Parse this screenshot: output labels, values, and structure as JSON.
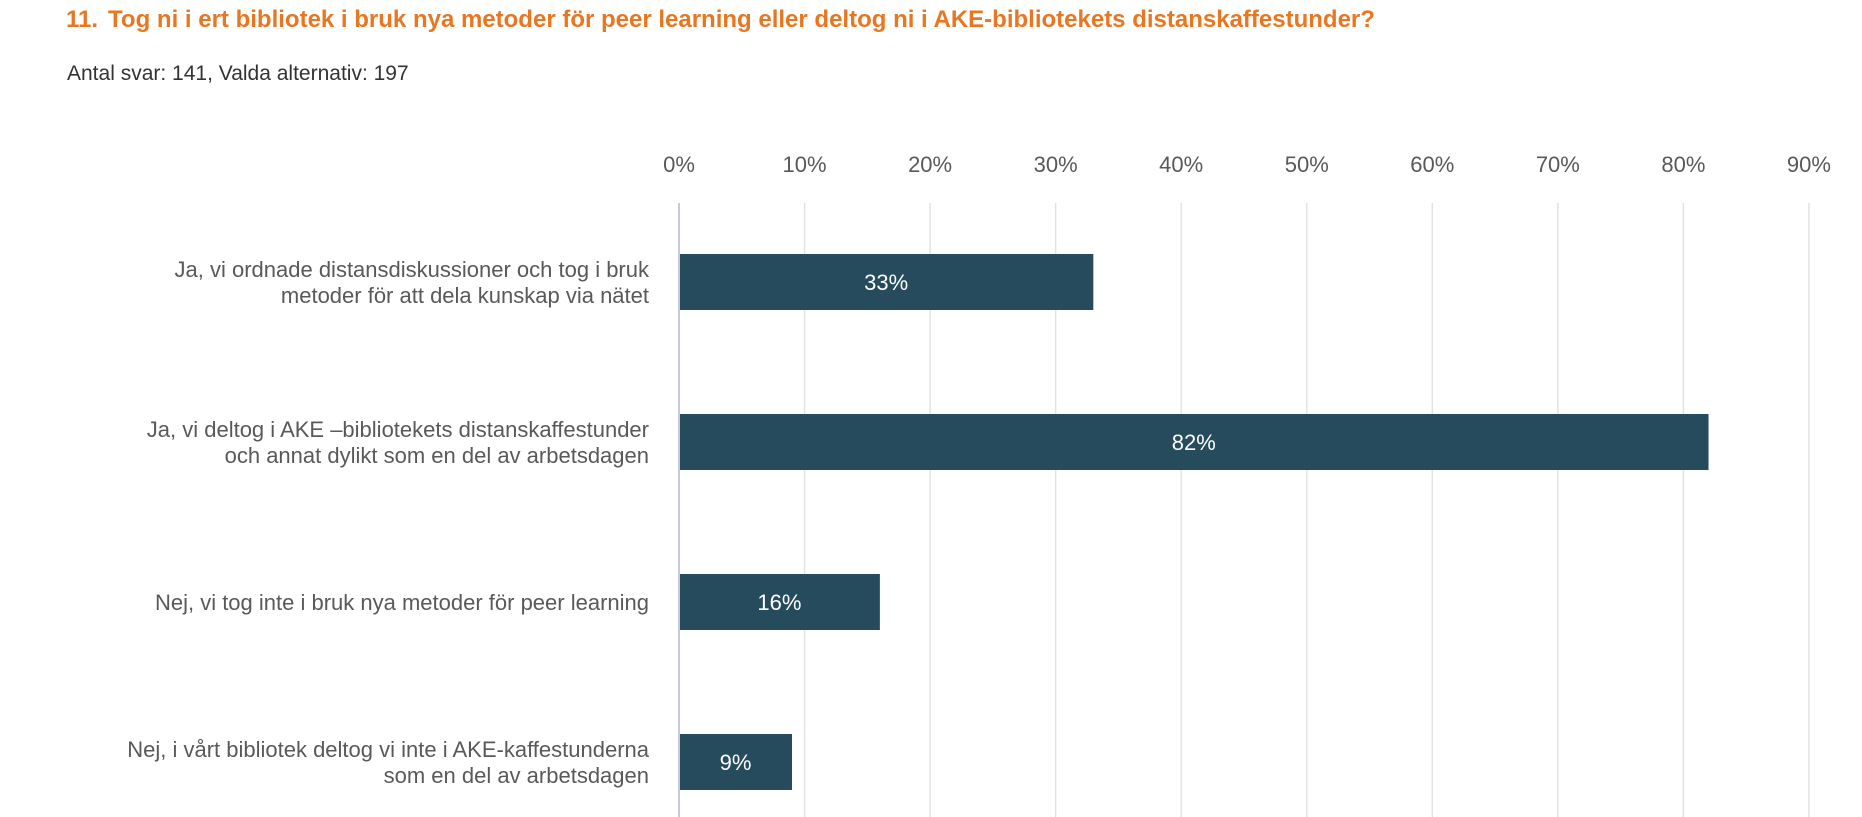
{
  "header": {
    "question_number": "11.",
    "question_text": "Tog ni i ert bibliotek i bruk nya metoder för peer learning eller deltog ni i AKE-bibliotekets distanskaffestunder?",
    "stats": "Antal svar: 141, Valda alternativ: 197"
  },
  "colors": {
    "title": "#e87722",
    "bar": "#264b5d",
    "grid": "#e3e3e3",
    "axis": "#c6c9e0",
    "label": "#595959",
    "bar_label": "#ffffff"
  },
  "chart_data": {
    "type": "bar",
    "orientation": "horizontal",
    "title": "",
    "xlabel": "",
    "ylabel": "",
    "xlim": [
      0,
      90
    ],
    "ticks": [
      0,
      10,
      20,
      30,
      40,
      50,
      60,
      70,
      80,
      90
    ],
    "tick_labels": [
      "0%",
      "10%",
      "20%",
      "30%",
      "40%",
      "50%",
      "60%",
      "70%",
      "80%",
      "90%"
    ],
    "grid": true,
    "legend": "none",
    "categories": [
      [
        "Ja, vi ordnade distansdiskussioner och tog i bruk",
        "metoder för att dela kunskap via nätet"
      ],
      [
        "Ja, vi deltog i AKE –bibliotekets distanskaffestunder",
        "och annat dylikt som en del av arbetsdagen"
      ],
      [
        "Nej, vi tog inte i bruk nya metoder för peer learning"
      ],
      [
        "Nej, i vårt bibliotek deltog vi inte i AKE-kaffestunderna",
        "som en del av arbetsdagen"
      ]
    ],
    "values": [
      33,
      82,
      16,
      9
    ],
    "value_labels": [
      "33%",
      "82%",
      "16%",
      "9%"
    ]
  }
}
